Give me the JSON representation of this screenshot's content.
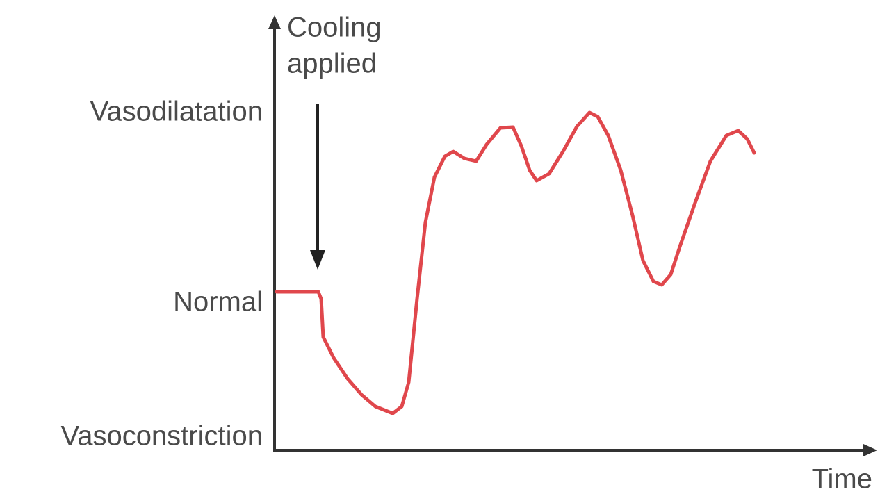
{
  "y_axis": {
    "levels": [
      "Vasodilatation",
      "Normal",
      "Vasoconstriction"
    ]
  },
  "annotation": {
    "lines": [
      "Cooling",
      "applied"
    ]
  },
  "x_axis": {
    "label": "Time"
  }
}
